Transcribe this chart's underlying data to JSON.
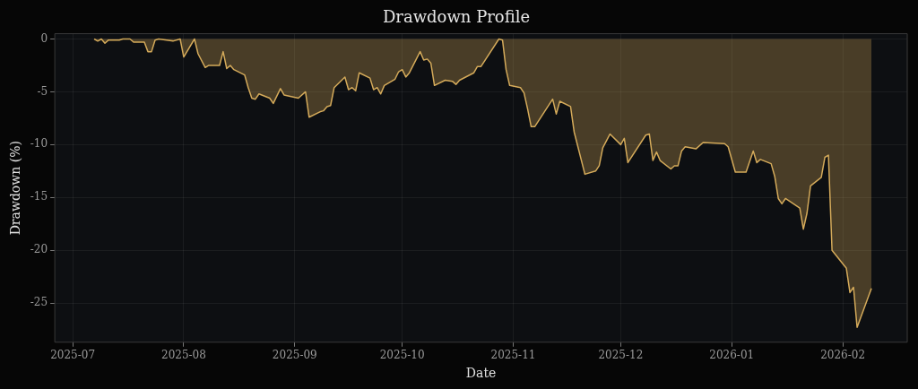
{
  "chart_data": {
    "type": "area",
    "title": "Drawdown Profile",
    "xlabel": "Date",
    "ylabel": "Drawdown (%)",
    "x": [
      "2025-07-07",
      "2025-07-08",
      "2025-07-09",
      "2025-07-10",
      "2025-07-11",
      "2025-07-14",
      "2025-07-15",
      "2025-07-17",
      "2025-07-18",
      "2025-07-21",
      "2025-07-22",
      "2025-07-23",
      "2025-07-24",
      "2025-07-25",
      "2025-07-29",
      "2025-07-31",
      "2025-08-01",
      "2025-08-04",
      "2025-08-05",
      "2025-08-07",
      "2025-08-08",
      "2025-08-11",
      "2025-08-12",
      "2025-08-13",
      "2025-08-14",
      "2025-08-15",
      "2025-08-18",
      "2025-08-19",
      "2025-08-20",
      "2025-08-21",
      "2025-08-22",
      "2025-08-25",
      "2025-08-26",
      "2025-08-28",
      "2025-08-29",
      "2025-09-02",
      "2025-09-04",
      "2025-09-05",
      "2025-09-08",
      "2025-09-09",
      "2025-09-10",
      "2025-09-11",
      "2025-09-12",
      "2025-09-15",
      "2025-09-16",
      "2025-09-17",
      "2025-09-18",
      "2025-09-19",
      "2025-09-22",
      "2025-09-23",
      "2025-09-24",
      "2025-09-25",
      "2025-09-26",
      "2025-09-29",
      "2025-09-30",
      "2025-10-01",
      "2025-10-02",
      "2025-10-03",
      "2025-10-06",
      "2025-10-07",
      "2025-10-08",
      "2025-10-09",
      "2025-10-10",
      "2025-10-13",
      "2025-10-15",
      "2025-10-16",
      "2025-10-17",
      "2025-10-21",
      "2025-10-22",
      "2025-10-23",
      "2025-10-28",
      "2025-10-29",
      "2025-10-30",
      "2025-10-31",
      "2025-11-03",
      "2025-11-04",
      "2025-11-05",
      "2025-11-06",
      "2025-11-07",
      "2025-11-12",
      "2025-11-13",
      "2025-11-14",
      "2025-11-17",
      "2025-11-18",
      "2025-11-21",
      "2025-11-24",
      "2025-11-25",
      "2025-11-26",
      "2025-11-28",
      "2025-12-01",
      "2025-12-02",
      "2025-12-03",
      "2025-12-08",
      "2025-12-09",
      "2025-12-10",
      "2025-12-11",
      "2025-12-12",
      "2025-12-15",
      "2025-12-16",
      "2025-12-17",
      "2025-12-18",
      "2025-12-19",
      "2025-12-22",
      "2025-12-24",
      "2025-12-30",
      "2025-12-31",
      "2026-01-02",
      "2026-01-05",
      "2026-01-07",
      "2026-01-08",
      "2026-01-09",
      "2026-01-12",
      "2026-01-13",
      "2026-01-14",
      "2026-01-15",
      "2026-01-16",
      "2026-01-20",
      "2026-01-21",
      "2026-01-22",
      "2026-01-23",
      "2026-01-26",
      "2026-01-27",
      "2026-01-28",
      "2026-01-29",
      "2026-02-02",
      "2026-02-03",
      "2026-02-04",
      "2026-02-05",
      "2026-02-09"
    ],
    "series": [
      {
        "color": "#d4aa5a",
        "values": [
          0,
          -0.2,
          0,
          -0.4,
          -0.1,
          -0.1,
          0,
          0,
          -0.3,
          -0.3,
          -1.2,
          -1.2,
          -0.1,
          0,
          -0.2,
          0,
          -1.7,
          0,
          -1.4,
          -2.7,
          -2.5,
          -2.5,
          -1.2,
          -2.8,
          -2.5,
          -2.9,
          -3.4,
          -4.6,
          -5.6,
          -5.7,
          -5.2,
          -5.6,
          -6.1,
          -4.7,
          -5.3,
          -5.6,
          -5.0,
          -7.4,
          -6.9,
          -6.8,
          -6.4,
          -6.3,
          -4.6,
          -3.6,
          -4.8,
          -4.6,
          -4.9,
          -3.2,
          -3.7,
          -4.8,
          -4.6,
          -5.2,
          -4.4,
          -3.8,
          -3.1,
          -2.9,
          -3.6,
          -3.2,
          -1.2,
          -2.0,
          -1.9,
          -2.3,
          -4.4,
          -3.9,
          -4.0,
          -4.3,
          -3.9,
          -3.2,
          -2.6,
          -2.6,
          0,
          -0.1,
          -2.9,
          -4.4,
          -4.6,
          -5.1,
          -6.6,
          -8.3,
          -8.3,
          -5.7,
          -7.1,
          -5.9,
          -6.4,
          -8.8,
          -12.8,
          -12.5,
          -12.0,
          -10.3,
          -9.0,
          -10.0,
          -9.4,
          -11.7,
          -9.1,
          -9.0,
          -11.5,
          -10.7,
          -11.5,
          -12.3,
          -12.0,
          -12.0,
          -10.6,
          -10.2,
          -10.4,
          -9.8,
          -9.9,
          -10.2,
          -12.6,
          -12.6,
          -10.6,
          -11.7,
          -11.4,
          -11.8,
          -13.0,
          -15.1,
          -15.6,
          -15.1,
          -16.0,
          -18.0,
          -16.5,
          -13.9,
          -13.1,
          -11.2,
          -11.0,
          -20.0,
          -21.7,
          -24.0,
          -23.5,
          -27.3,
          -23.6
        ]
      }
    ],
    "xlim": [
      "2025-06-26",
      "2026-02-19"
    ],
    "xticks": [
      "2025-07",
      "2025-08",
      "2025-09",
      "2025-10",
      "2025-11",
      "2025-12",
      "2026-01",
      "2026-02"
    ],
    "ylim": [
      -28.7,
      0.5
    ],
    "yticks": [
      0,
      -5,
      -10,
      -15,
      -20,
      -25
    ],
    "grid": true,
    "marker": "none",
    "line_style": "solid"
  }
}
